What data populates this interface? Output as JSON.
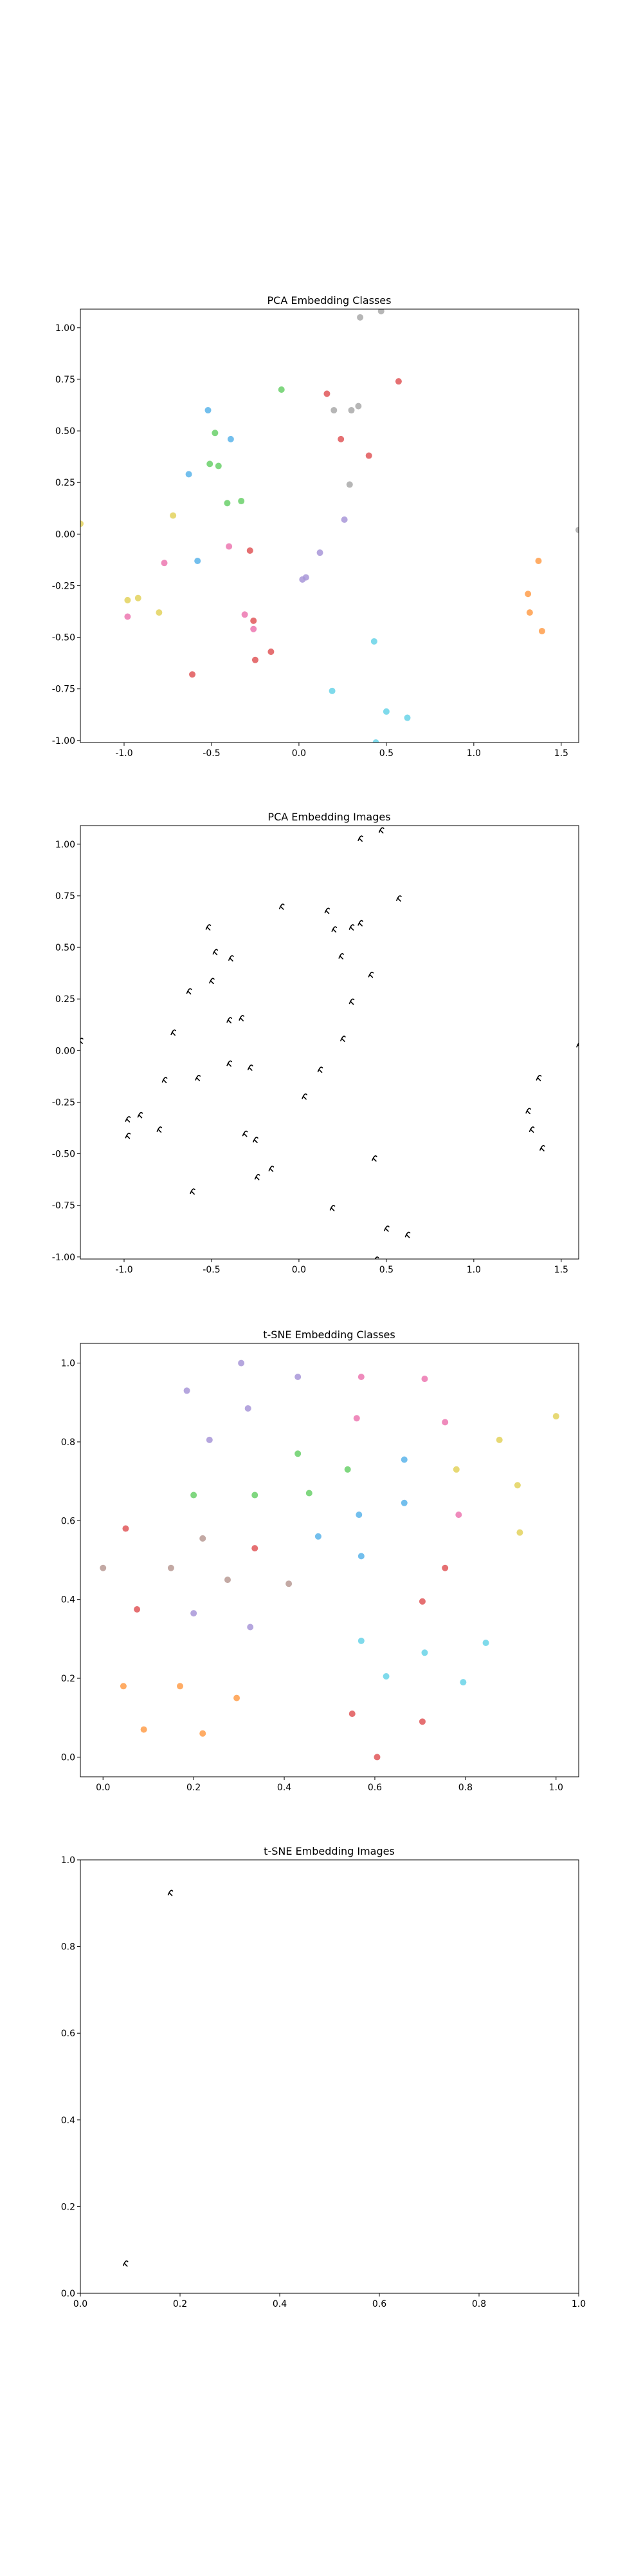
{
  "figure": {
    "background": "#ffffff"
  },
  "class_colors": {
    "0": "#e15759",
    "1": "#ff9d4a",
    "2": "#5ab4ea",
    "3": "#6ad06a",
    "4": "#e3d25d",
    "5": "#68d3e8",
    "6": "#ec77b0",
    "7": "#a897d8",
    "8": "#b89a94",
    "9": "#a9a9a9"
  },
  "chart_data": [
    {
      "type": "scatter",
      "title": "PCA Embedding Classes",
      "xlabel": "",
      "ylabel": "",
      "xlim": [
        -1.25,
        1.6
      ],
      "ylim": [
        -1.01,
        1.09
      ],
      "xticks": [
        "-1.0",
        "-0.5",
        "0.0",
        "0.5",
        "1.0",
        "1.5"
      ],
      "xtick_values": [
        -1.0,
        -0.5,
        0.0,
        0.5,
        1.0,
        1.5
      ],
      "yticks": [
        "-1.00",
        "-0.75",
        "-0.50",
        "-0.25",
        "0.00",
        "0.25",
        "0.50",
        "0.75",
        "1.00"
      ],
      "ytick_values": [
        -1.0,
        -0.75,
        -0.5,
        -0.25,
        0.0,
        0.25,
        0.5,
        0.75,
        1.0
      ],
      "grid": false,
      "points": [
        {
          "x": 0.35,
          "y": 1.05,
          "c": 9
        },
        {
          "x": 0.47,
          "y": 1.08,
          "c": 9
        },
        {
          "x": 0.57,
          "y": 0.74,
          "c": 0
        },
        {
          "x": 0.16,
          "y": 0.68,
          "c": 0
        },
        {
          "x": -0.1,
          "y": 0.7,
          "c": 3
        },
        {
          "x": -0.52,
          "y": 0.6,
          "c": 2
        },
        {
          "x": 0.2,
          "y": 0.6,
          "c": 9
        },
        {
          "x": 0.3,
          "y": 0.6,
          "c": 9
        },
        {
          "x": 0.34,
          "y": 0.62,
          "c": 9
        },
        {
          "x": -0.48,
          "y": 0.49,
          "c": 3
        },
        {
          "x": 0.24,
          "y": 0.46,
          "c": 0
        },
        {
          "x": -0.39,
          "y": 0.46,
          "c": 2
        },
        {
          "x": -0.51,
          "y": 0.34,
          "c": 3
        },
        {
          "x": -0.46,
          "y": 0.33,
          "c": 3
        },
        {
          "x": 0.4,
          "y": 0.38,
          "c": 0
        },
        {
          "x": -0.63,
          "y": 0.29,
          "c": 2
        },
        {
          "x": 0.29,
          "y": 0.24,
          "c": 9
        },
        {
          "x": -0.33,
          "y": 0.16,
          "c": 3
        },
        {
          "x": -0.41,
          "y": 0.15,
          "c": 3
        },
        {
          "x": -0.72,
          "y": 0.09,
          "c": 4
        },
        {
          "x": 0.26,
          "y": 0.07,
          "c": 7
        },
        {
          "x": -1.25,
          "y": 0.05,
          "c": 4
        },
        {
          "x": 1.6,
          "y": 0.02,
          "c": 9
        },
        {
          "x": -0.4,
          "y": -0.06,
          "c": 6
        },
        {
          "x": -0.28,
          "y": -0.08,
          "c": 0
        },
        {
          "x": 0.12,
          "y": -0.09,
          "c": 7
        },
        {
          "x": 1.37,
          "y": -0.13,
          "c": 1
        },
        {
          "x": -0.58,
          "y": -0.13,
          "c": 2
        },
        {
          "x": -0.77,
          "y": -0.14,
          "c": 6
        },
        {
          "x": 0.04,
          "y": -0.21,
          "c": 7
        },
        {
          "x": 0.02,
          "y": -0.22,
          "c": 7
        },
        {
          "x": 1.31,
          "y": -0.29,
          "c": 1
        },
        {
          "x": -0.98,
          "y": -0.32,
          "c": 4
        },
        {
          "x": -0.92,
          "y": -0.31,
          "c": 4
        },
        {
          "x": 1.32,
          "y": -0.38,
          "c": 1
        },
        {
          "x": -0.8,
          "y": -0.38,
          "c": 4
        },
        {
          "x": -0.31,
          "y": -0.39,
          "c": 6
        },
        {
          "x": -0.98,
          "y": -0.4,
          "c": 6
        },
        {
          "x": -0.26,
          "y": -0.42,
          "c": 0
        },
        {
          "x": -0.26,
          "y": -0.46,
          "c": 6
        },
        {
          "x": 1.39,
          "y": -0.47,
          "c": 1
        },
        {
          "x": 0.43,
          "y": -0.52,
          "c": 5
        },
        {
          "x": -0.16,
          "y": -0.57,
          "c": 0
        },
        {
          "x": -0.25,
          "y": -0.61,
          "c": 0
        },
        {
          "x": -0.61,
          "y": -0.68,
          "c": 0
        },
        {
          "x": 0.19,
          "y": -0.76,
          "c": 5
        },
        {
          "x": 0.5,
          "y": -0.86,
          "c": 5
        },
        {
          "x": 0.62,
          "y": -0.89,
          "c": 5
        },
        {
          "x": 0.44,
          "y": -1.01,
          "c": 5
        }
      ]
    },
    {
      "type": "scatter",
      "title": "PCA Embedding Images",
      "xlabel": "",
      "ylabel": "",
      "xlim": [
        -1.25,
        1.6
      ],
      "ylim": [
        -1.01,
        1.09
      ],
      "xticks": [
        "-1.0",
        "-0.5",
        "0.0",
        "0.5",
        "1.0",
        "1.5"
      ],
      "xtick_values": [
        -1.0,
        -0.5,
        0.0,
        0.5,
        1.0,
        1.5
      ],
      "yticks": [
        "-1.00",
        "-0.75",
        "-0.50",
        "-0.25",
        "0.00",
        "0.25",
        "0.50",
        "0.75",
        "1.00"
      ],
      "ytick_values": [
        -1.0,
        -0.75,
        -0.5,
        -0.25,
        0.0,
        0.25,
        0.5,
        0.75,
        1.0
      ],
      "grid": false,
      "marker": "thumbnail",
      "points": [
        {
          "x": 0.35,
          "y": 1.03
        },
        {
          "x": 0.47,
          "y": 1.07
        },
        {
          "x": 0.57,
          "y": 0.74
        },
        {
          "x": -0.1,
          "y": 0.7
        },
        {
          "x": 0.16,
          "y": 0.68
        },
        {
          "x": -0.52,
          "y": 0.6
        },
        {
          "x": 0.2,
          "y": 0.59
        },
        {
          "x": 0.3,
          "y": 0.6
        },
        {
          "x": 0.35,
          "y": 0.62
        },
        {
          "x": -0.48,
          "y": 0.48
        },
        {
          "x": 0.24,
          "y": 0.46
        },
        {
          "x": -0.39,
          "y": 0.45
        },
        {
          "x": 0.41,
          "y": 0.37
        },
        {
          "x": -0.5,
          "y": 0.34
        },
        {
          "x": -0.63,
          "y": 0.29
        },
        {
          "x": 0.3,
          "y": 0.24
        },
        {
          "x": -0.33,
          "y": 0.16
        },
        {
          "x": -0.4,
          "y": 0.15
        },
        {
          "x": -0.72,
          "y": 0.09
        },
        {
          "x": 0.25,
          "y": 0.06
        },
        {
          "x": -1.25,
          "y": 0.05
        },
        {
          "x": 1.6,
          "y": 0.03
        },
        {
          "x": -0.4,
          "y": -0.06
        },
        {
          "x": -0.28,
          "y": -0.08
        },
        {
          "x": 0.12,
          "y": -0.09
        },
        {
          "x": 1.37,
          "y": -0.13
        },
        {
          "x": -0.58,
          "y": -0.13
        },
        {
          "x": -0.77,
          "y": -0.14
        },
        {
          "x": 0.03,
          "y": -0.22
        },
        {
          "x": 1.31,
          "y": -0.29
        },
        {
          "x": -0.98,
          "y": -0.33
        },
        {
          "x": -0.91,
          "y": -0.31
        },
        {
          "x": 1.33,
          "y": -0.38
        },
        {
          "x": -0.8,
          "y": -0.38
        },
        {
          "x": -0.31,
          "y": -0.4
        },
        {
          "x": -0.98,
          "y": -0.41
        },
        {
          "x": -0.25,
          "y": -0.43
        },
        {
          "x": 1.39,
          "y": -0.47
        },
        {
          "x": 0.43,
          "y": -0.52
        },
        {
          "x": -0.16,
          "y": -0.57
        },
        {
          "x": -0.24,
          "y": -0.61
        },
        {
          "x": -0.61,
          "y": -0.68
        },
        {
          "x": 0.19,
          "y": -0.76
        },
        {
          "x": 0.5,
          "y": -0.86
        },
        {
          "x": 0.62,
          "y": -0.89
        },
        {
          "x": 0.44,
          "y": -1.01
        }
      ]
    },
    {
      "type": "scatter",
      "title": "t-SNE Embedding Classes",
      "xlabel": "",
      "ylabel": "",
      "xlim": [
        -0.05,
        1.05
      ],
      "ylim": [
        -0.05,
        1.05
      ],
      "xticks": [
        "0.0",
        "0.2",
        "0.4",
        "0.6",
        "0.8",
        "1.0"
      ],
      "xtick_values": [
        0.0,
        0.2,
        0.4,
        0.6,
        0.8,
        1.0
      ],
      "yticks": [
        "0.0",
        "0.2",
        "0.4",
        "0.6",
        "0.8",
        "1.0"
      ],
      "ytick_values": [
        0.0,
        0.2,
        0.4,
        0.6,
        0.8,
        1.0
      ],
      "grid": false,
      "points": [
        {
          "x": 0.305,
          "y": 1.0,
          "c": 7
        },
        {
          "x": 0.43,
          "y": 0.965,
          "c": 7
        },
        {
          "x": 0.57,
          "y": 0.965,
          "c": 6
        },
        {
          "x": 0.71,
          "y": 0.96,
          "c": 6
        },
        {
          "x": 1.0,
          "y": 0.865,
          "c": 4
        },
        {
          "x": 0.185,
          "y": 0.93,
          "c": 7
        },
        {
          "x": 0.32,
          "y": 0.885,
          "c": 7
        },
        {
          "x": 0.56,
          "y": 0.86,
          "c": 6
        },
        {
          "x": 0.755,
          "y": 0.85,
          "c": 6
        },
        {
          "x": 0.875,
          "y": 0.805,
          "c": 4
        },
        {
          "x": 0.235,
          "y": 0.805,
          "c": 7
        },
        {
          "x": 0.43,
          "y": 0.77,
          "c": 3
        },
        {
          "x": 0.665,
          "y": 0.755,
          "c": 2
        },
        {
          "x": 0.54,
          "y": 0.73,
          "c": 3
        },
        {
          "x": 0.78,
          "y": 0.73,
          "c": 4
        },
        {
          "x": 0.915,
          "y": 0.69,
          "c": 4
        },
        {
          "x": 0.2,
          "y": 0.665,
          "c": 3
        },
        {
          "x": 0.335,
          "y": 0.665,
          "c": 3
        },
        {
          "x": 0.455,
          "y": 0.67,
          "c": 3
        },
        {
          "x": 0.665,
          "y": 0.645,
          "c": 2
        },
        {
          "x": 0.565,
          "y": 0.615,
          "c": 2
        },
        {
          "x": 0.785,
          "y": 0.615,
          "c": 6
        },
        {
          "x": 0.05,
          "y": 0.58,
          "c": 0
        },
        {
          "x": 0.92,
          "y": 0.57,
          "c": 4
        },
        {
          "x": 0.22,
          "y": 0.555,
          "c": 8
        },
        {
          "x": 0.475,
          "y": 0.56,
          "c": 2
        },
        {
          "x": 0.335,
          "y": 0.53,
          "c": 0
        },
        {
          "x": 0.57,
          "y": 0.51,
          "c": 2
        },
        {
          "x": 0.0,
          "y": 0.48,
          "c": 8
        },
        {
          "x": 0.15,
          "y": 0.48,
          "c": 8
        },
        {
          "x": 0.755,
          "y": 0.48,
          "c": 0
        },
        {
          "x": 0.275,
          "y": 0.45,
          "c": 8
        },
        {
          "x": 0.41,
          "y": 0.44,
          "c": 8
        },
        {
          "x": 0.705,
          "y": 0.395,
          "c": 0
        },
        {
          "x": 0.075,
          "y": 0.375,
          "c": 0
        },
        {
          "x": 0.2,
          "y": 0.365,
          "c": 7
        },
        {
          "x": 0.325,
          "y": 0.33,
          "c": 7
        },
        {
          "x": 0.57,
          "y": 0.295,
          "c": 5
        },
        {
          "x": 0.845,
          "y": 0.29,
          "c": 5
        },
        {
          "x": 0.71,
          "y": 0.265,
          "c": 5
        },
        {
          "x": 0.625,
          "y": 0.205,
          "c": 5
        },
        {
          "x": 0.795,
          "y": 0.19,
          "c": 5
        },
        {
          "x": 0.045,
          "y": 0.18,
          "c": 1
        },
        {
          "x": 0.17,
          "y": 0.18,
          "c": 1
        },
        {
          "x": 0.295,
          "y": 0.15,
          "c": 1
        },
        {
          "x": 0.55,
          "y": 0.11,
          "c": 0
        },
        {
          "x": 0.705,
          "y": 0.09,
          "c": 0
        },
        {
          "x": 0.09,
          "y": 0.07,
          "c": 1
        },
        {
          "x": 0.22,
          "y": 0.06,
          "c": 1
        },
        {
          "x": 0.605,
          "y": 0.0,
          "c": 0
        }
      ]
    },
    {
      "type": "scatter",
      "title": "t-SNE Embedding Images",
      "xlabel": "",
      "ylabel": "",
      "xlim": [
        0.0,
        1.0
      ],
      "ylim": [
        0.0,
        1.0
      ],
      "xticks": [
        "0.0",
        "0.2",
        "0.4",
        "0.6",
        "0.8",
        "1.0"
      ],
      "xtick_values": [
        0.0,
        0.2,
        0.4,
        0.6,
        0.8,
        1.0
      ],
      "yticks": [
        "0.0",
        "0.2",
        "0.4",
        "0.6",
        "0.8",
        "1.0"
      ],
      "ytick_values": [
        0.0,
        0.2,
        0.4,
        0.6,
        0.8,
        1.0
      ],
      "grid": false,
      "marker": "thumbnail",
      "points": [
        {
          "x": 0.18,
          "y": 0.925
        },
        {
          "x": 0.09,
          "y": 0.07
        }
      ]
    }
  ]
}
